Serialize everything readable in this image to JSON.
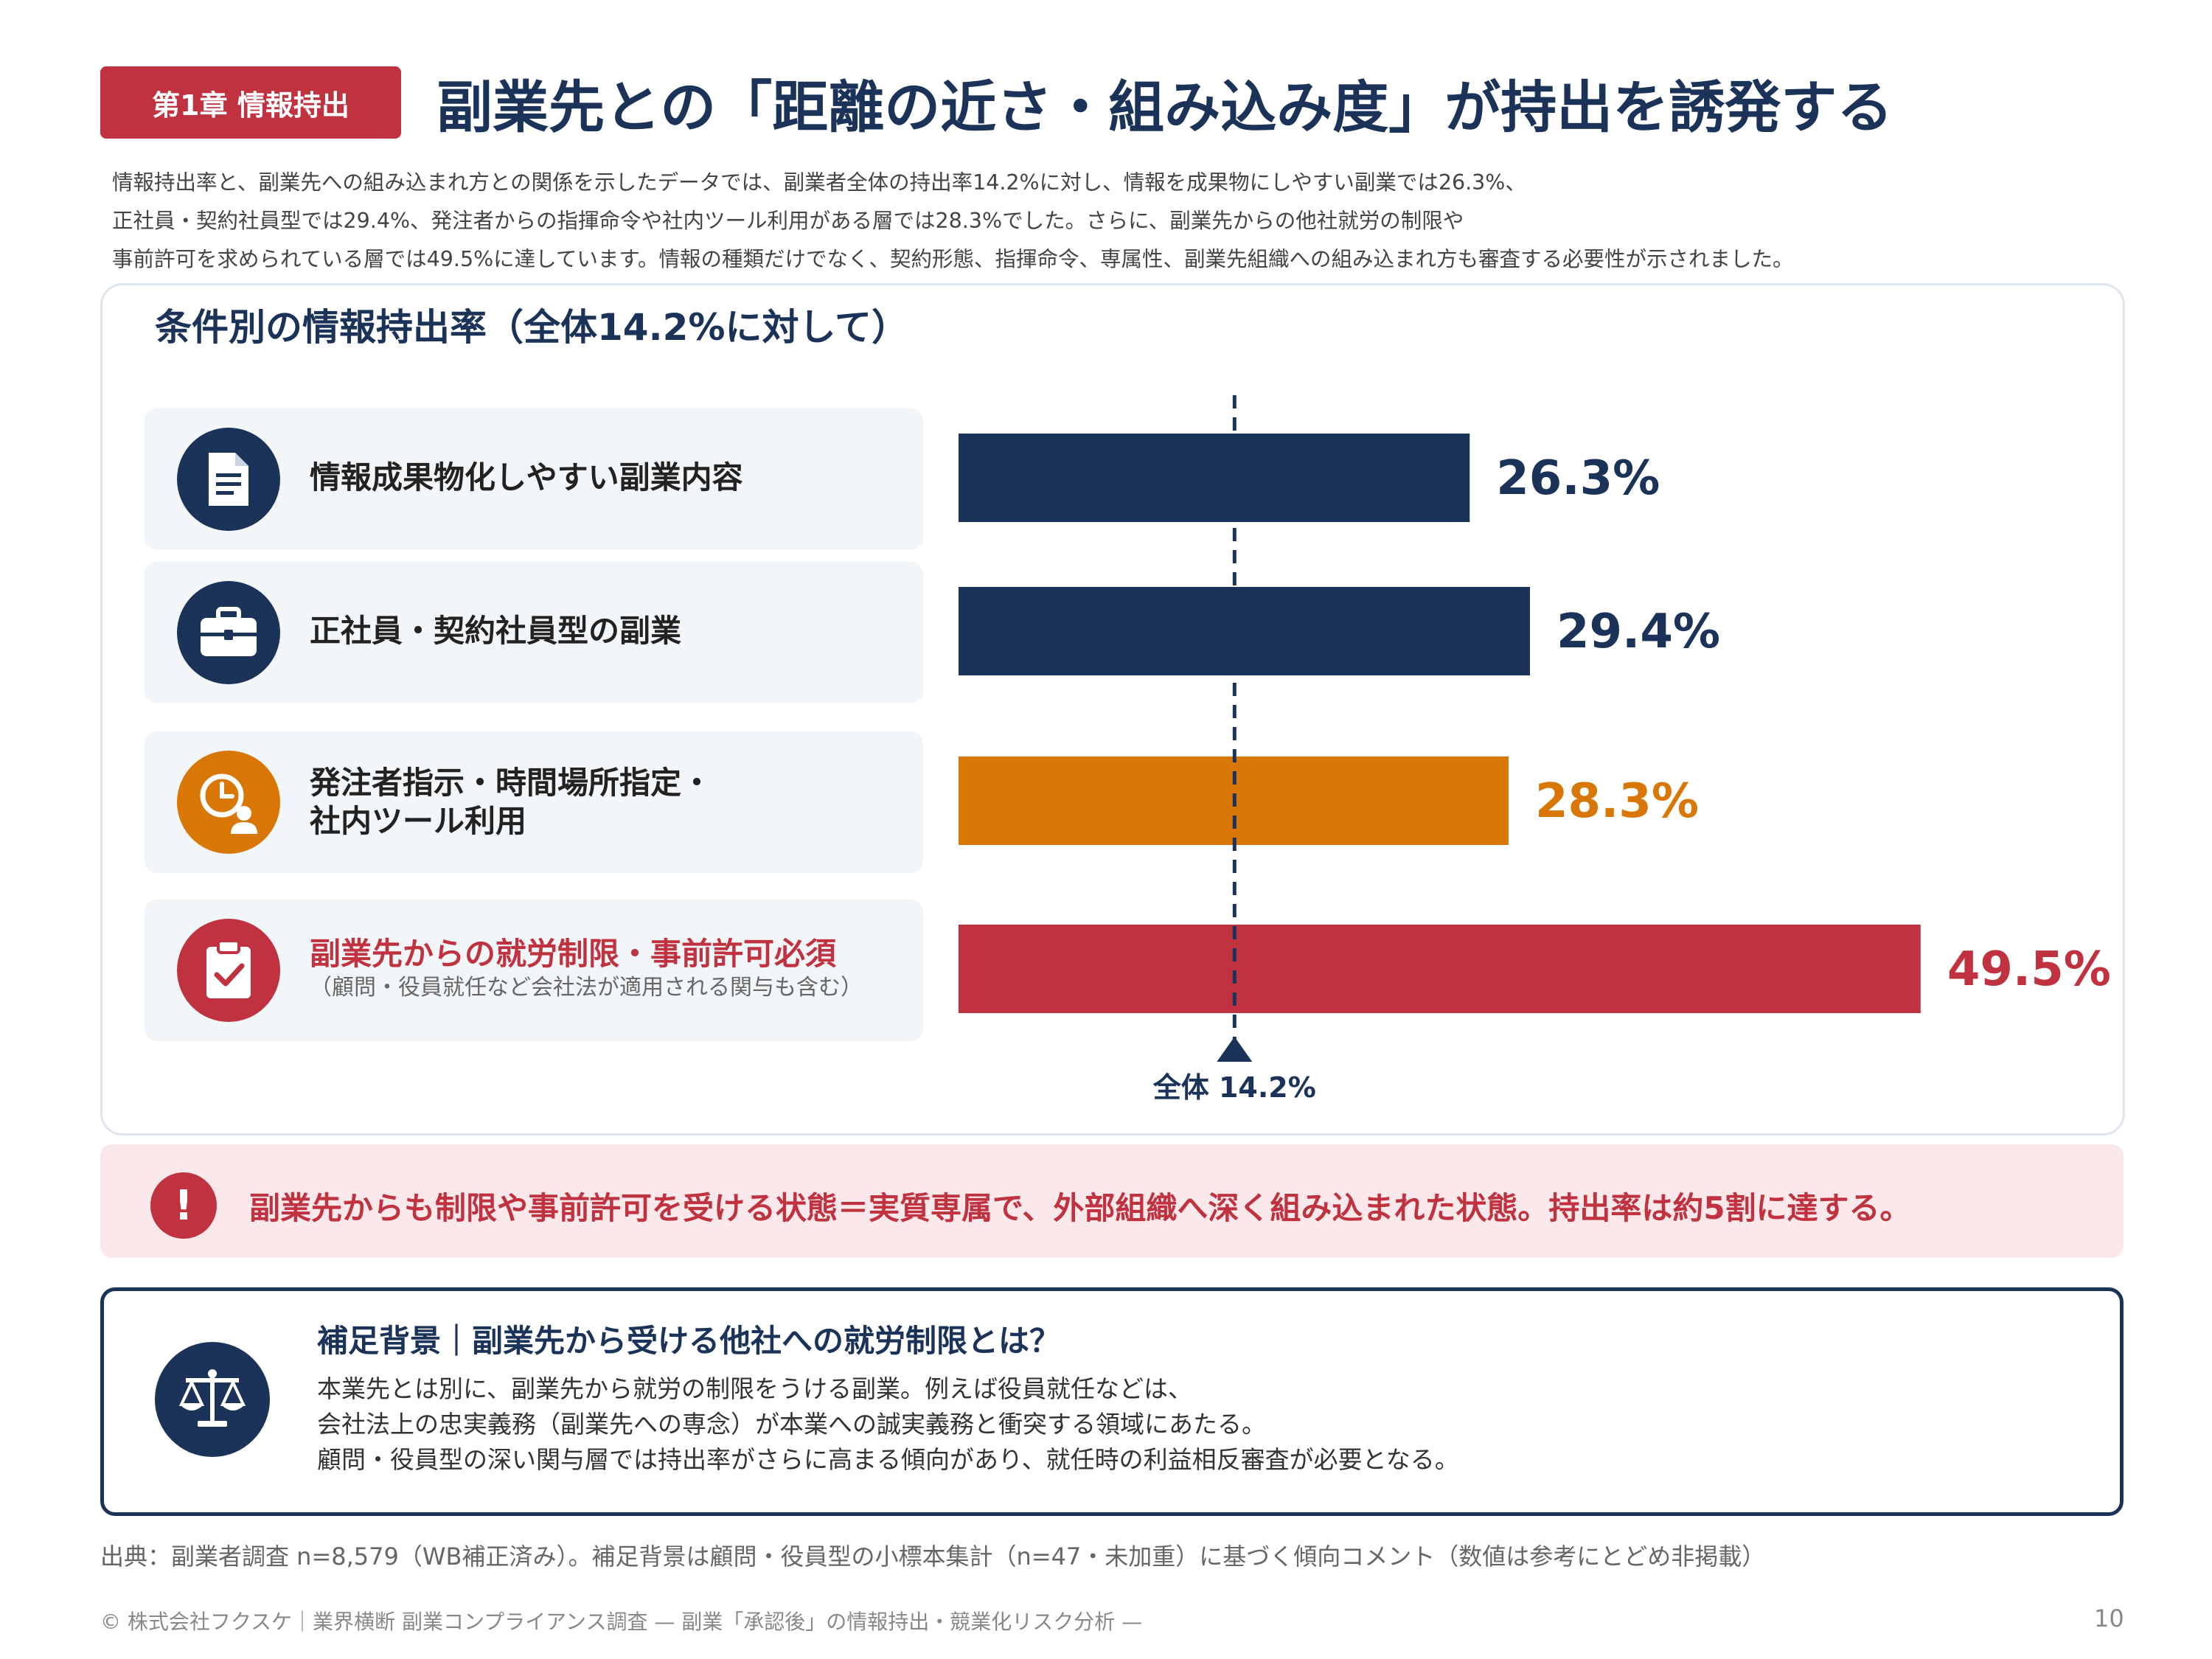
{
  "header": {
    "chapter_badge": "第1章 情報持出",
    "title": "副業先との「距離の近さ・組み込み度」が持出を誘発する"
  },
  "intro": {
    "lines": [
      "情報持出率と、副業先への組み込まれ方との関係を示したデータでは、副業者全体の持出率14.2%に対し、情報を成果物にしやすい副業では26.3%、",
      "正社員・契約社員型では29.4%、発注者からの指揮命令や社内ツール利用がある層では28.3%でした。さらに、副業先からの他社就労の制限や",
      "事前許可を求められている層では49.5%に達しています。情報の種類だけでなく、契約形態、指揮命令、専属性、副業先組織への組み込まれ方も審査する必要性が示されました。"
    ]
  },
  "chart_data": {
    "type": "bar",
    "orientation": "horizontal",
    "title": "条件別の情報持出率（全体14.2%に対して）",
    "categories": [
      "情報成果物化しやすい副業内容",
      "正社員・契約社員型の副業",
      "発注者指示・時間場所指定・社内ツール利用",
      "副業先からの就労制限・事前許可必須"
    ],
    "values": [
      26.3,
      29.4,
      28.3,
      49.5
    ],
    "value_labels": [
      "26.3%",
      "29.4%",
      "28.3%",
      "49.5%"
    ],
    "colors": [
      "#1b3358",
      "#1b3358",
      "#d97706",
      "#c0323f"
    ],
    "reference": {
      "value": 14.2,
      "label": "全体 14.2%"
    },
    "xlim": [
      0,
      52
    ],
    "unit": "%"
  },
  "rows": [
    {
      "label_lines": [
        "情報成果物化しやすい副業内容"
      ],
      "sub": "",
      "icon": "document-icon",
      "color": "#1b3358",
      "label_color": "#222222"
    },
    {
      "label_lines": [
        "正社員・契約社員型の副業"
      ],
      "sub": "",
      "icon": "briefcase-icon",
      "color": "#1b3358",
      "label_color": "#222222"
    },
    {
      "label_lines": [
        "発注者指示・時間場所指定・",
        "社内ツール利用"
      ],
      "sub": "",
      "icon": "clock-person-icon",
      "color": "#d97706",
      "label_color": "#222222"
    },
    {
      "label_lines": [
        "副業先からの就労制限・事前許可必須"
      ],
      "sub": "（顧問・役員就任など会社法が適用される関与も含む）",
      "icon": "clipboard-check-icon",
      "color": "#c0323f",
      "label_color": "#c0323f"
    }
  ],
  "alert": {
    "icon": "exclamation-icon",
    "text": "副業先からも制限や事前許可を受ける状態＝実質専属で、外部組織へ深く組み込まれた状態。持出率は約5割に達する。"
  },
  "supplement": {
    "icon": "scales-icon",
    "title": "補足背景｜副業先から受ける他社への就労制限とは？",
    "lines": [
      "本業先とは別に、副業先から就労の制限をうける副業。例えば役員就任などは、",
      "会社法上の忠実義務（副業先への専念）が本業への誠実義務と衝突する領域にあたる。",
      "顧問・役員型の深い関与層では持出率がさらに高まる傾向があり、就任時の利益相反審査が必要となる。"
    ]
  },
  "source": "出典：副業者調査 n=8,579（WB補正済み）。補足背景は顧問・役員型の小標本集計（n=47・未加重）に基づく傾向コメント（数値は参考にとどめ非掲載）",
  "footer": {
    "text": "© 株式会社フクスケ｜業界横断 副業コンプライアンス調査 — 副業「承認後」の情報持出・競業化リスク分析 —",
    "page": "10"
  }
}
